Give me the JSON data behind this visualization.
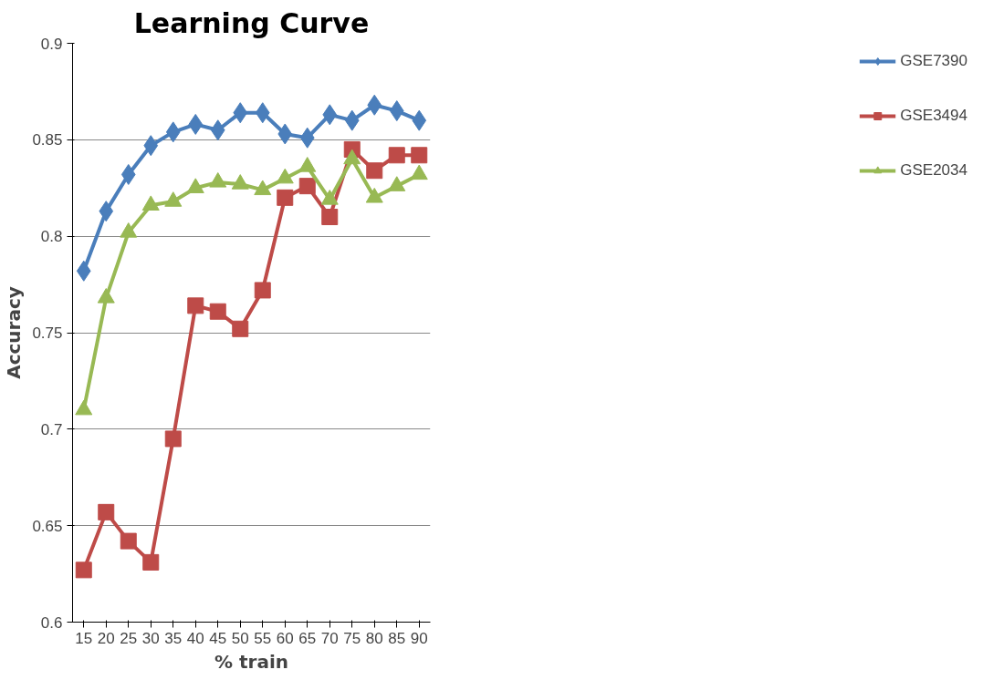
{
  "chart_data": {
    "type": "line",
    "title": "Learning Curve",
    "xlabel": "% train",
    "ylabel": "Accuracy",
    "categories": [
      "15",
      "20",
      "25",
      "30",
      "35",
      "40",
      "45",
      "50",
      "55",
      "60",
      "65",
      "70",
      "75",
      "80",
      "85",
      "90"
    ],
    "series": [
      {
        "name": "GSE7390",
        "color": "#4a7ebb",
        "marker": "diamond",
        "values": [
          0.782,
          0.813,
          0.832,
          0.847,
          0.854,
          0.858,
          0.855,
          0.864,
          0.864,
          0.853,
          0.851,
          0.863,
          0.86,
          0.868,
          0.865,
          0.86
        ]
      },
      {
        "name": "GSE3494",
        "color": "#be4b48",
        "marker": "square",
        "values": [
          0.627,
          0.657,
          0.642,
          0.631,
          0.695,
          0.764,
          0.761,
          0.752,
          0.772,
          0.82,
          0.826,
          0.81,
          0.845,
          0.834,
          0.842,
          0.842
        ]
      },
      {
        "name": "GSE2034",
        "color": "#98b954",
        "marker": "triangle",
        "values": [
          0.71,
          0.768,
          0.802,
          0.816,
          0.818,
          0.825,
          0.828,
          0.827,
          0.824,
          0.83,
          0.836,
          0.819,
          0.84,
          0.82,
          0.826,
          0.832
        ]
      }
    ],
    "ylim": [
      0.6,
      0.9
    ],
    "yticks": [
      0.6,
      0.65,
      0.7,
      0.75,
      0.8,
      0.85,
      0.9
    ],
    "grid": "y",
    "legend": "right",
    "line_style": "solid"
  }
}
